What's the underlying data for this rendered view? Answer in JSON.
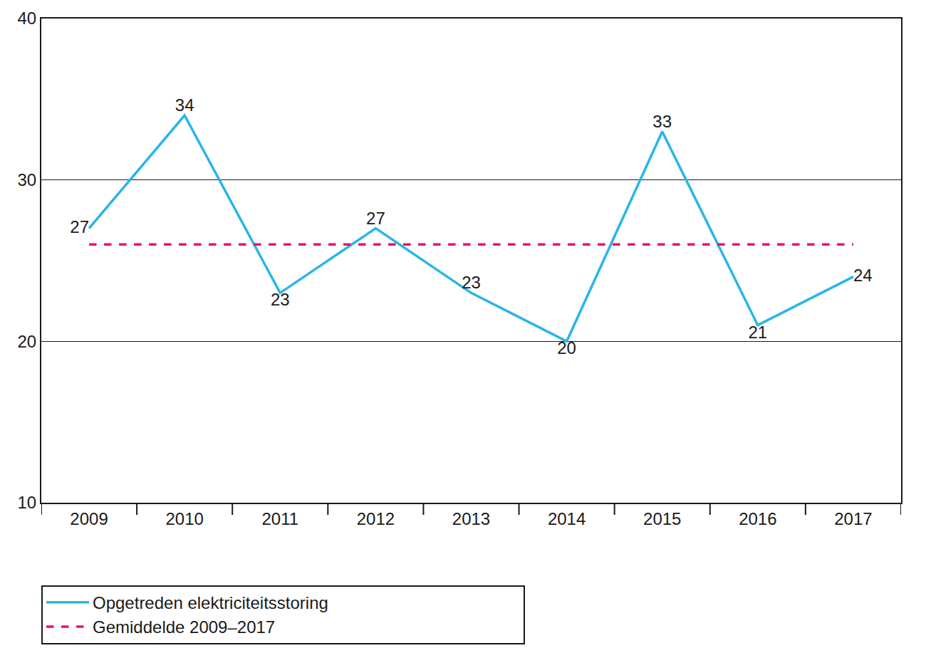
{
  "chart_data": {
    "type": "line",
    "categories": [
      "2009",
      "2010",
      "2011",
      "2012",
      "2013",
      "2014",
      "2015",
      "2016",
      "2017"
    ],
    "series": [
      {
        "name": "Opgetreden elektriciteitsstoring",
        "color": "#29b5e8",
        "line_style": "solid",
        "data_labels": true,
        "values": [
          27,
          34,
          23,
          27,
          23,
          20,
          33,
          21,
          24
        ]
      },
      {
        "name": "Gemiddelde 2009–2017",
        "color": "#e2137f",
        "line_style": "dashed",
        "values": [
          26,
          26,
          26,
          26,
          26,
          26,
          26,
          26,
          26
        ]
      }
    ],
    "ylim": [
      10,
      40
    ],
    "yticks": [
      10,
      20,
      30,
      40
    ],
    "grid": true,
    "legend": "bottom"
  }
}
